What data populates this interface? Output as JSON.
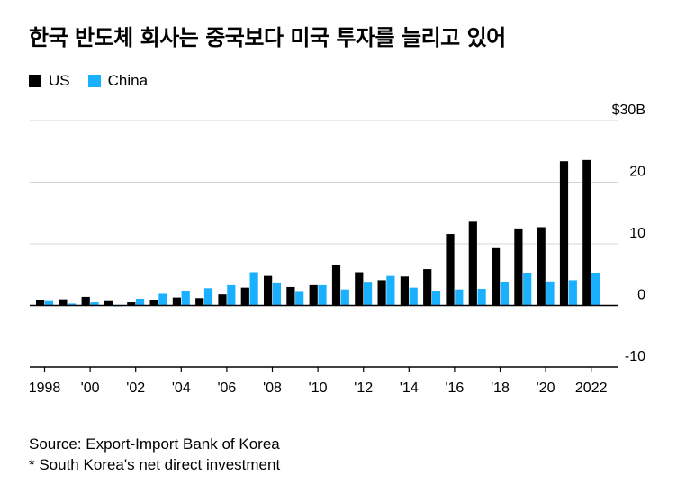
{
  "title": "한국 반도체 회사는 중국보다 미국 투자를 늘리고 있어",
  "legend": [
    {
      "label": "US",
      "color": "#000000"
    },
    {
      "label": "China",
      "color": "#19b1ff"
    }
  ],
  "footer": {
    "source": "Source: Export-Import Bank of Korea",
    "note": "* South Korea's net direct investment"
  },
  "chart_data": {
    "type": "bar",
    "title": "한국 반도체 회사는 중국보다 미국 투자를 늘리고 있어",
    "xlabel": "",
    "ylabel": "",
    "ylim": [
      -10,
      30
    ],
    "yticks": [
      30,
      20,
      10,
      0,
      -10
    ],
    "ytick_labels": [
      "$30B",
      "20",
      "10",
      "0",
      "-10"
    ],
    "categories": [
      "1998",
      "1999",
      "2000",
      "2001",
      "2002",
      "2003",
      "2004",
      "2005",
      "2006",
      "2007",
      "2008",
      "2009",
      "2010",
      "2011",
      "2012",
      "2013",
      "2014",
      "2015",
      "2016",
      "2017",
      "2018",
      "2019",
      "2020",
      "2021",
      "2022"
    ],
    "xtick_labels": [
      {
        "category": "1998",
        "label": "1998"
      },
      {
        "category": "2000",
        "label": "'00"
      },
      {
        "category": "2002",
        "label": "'02"
      },
      {
        "category": "2004",
        "label": "'04"
      },
      {
        "category": "2006",
        "label": "'06"
      },
      {
        "category": "2008",
        "label": "'08"
      },
      {
        "category": "2010",
        "label": "'10"
      },
      {
        "category": "2012",
        "label": "'12"
      },
      {
        "category": "2014",
        "label": "'14"
      },
      {
        "category": "2016",
        "label": "'16"
      },
      {
        "category": "2018",
        "label": "'18"
      },
      {
        "category": "2020",
        "label": "'20"
      },
      {
        "category": "2022",
        "label": "2022"
      }
    ],
    "series": [
      {
        "name": "US",
        "color": "#000000",
        "values": [
          0.9,
          1.0,
          1.4,
          0.7,
          0.5,
          0.8,
          1.3,
          1.2,
          1.8,
          2.9,
          4.8,
          3.0,
          3.3,
          6.5,
          5.4,
          4.1,
          4.7,
          5.9,
          11.6,
          13.6,
          9.3,
          12.5,
          12.7,
          23.4,
          23.6
        ]
      },
      {
        "name": "China",
        "color": "#19b1ff",
        "values": [
          0.7,
          0.3,
          0.5,
          0.0,
          1.1,
          1.9,
          2.3,
          2.8,
          3.3,
          5.4,
          3.6,
          2.2,
          3.3,
          2.6,
          3.7,
          4.8,
          2.9,
          2.4,
          2.6,
          2.7,
          3.8,
          5.3,
          3.9,
          4.1,
          5.3
        ]
      }
    ],
    "grid": true,
    "legend_position": "top-left"
  }
}
